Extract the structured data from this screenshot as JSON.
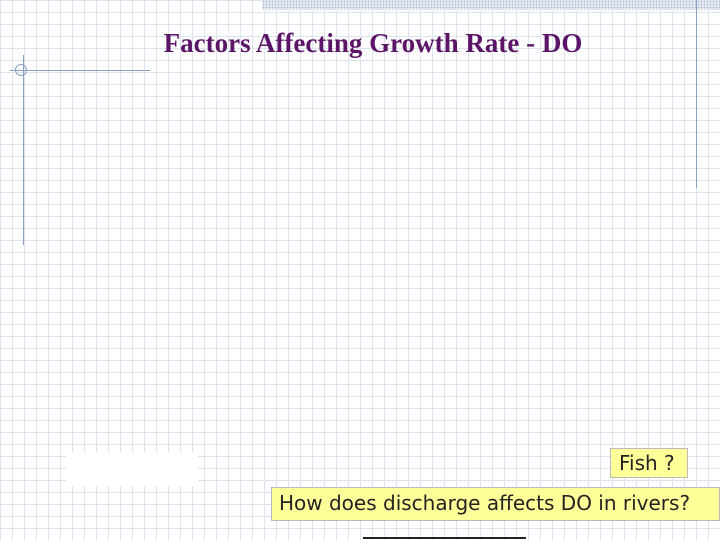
{
  "slide": {
    "title": "Factors Affecting Growth Rate - DO",
    "labels": {
      "fish": "Fish ?",
      "question": "How does discharge affects DO in rivers?"
    },
    "colors": {
      "title": "#5c1566",
      "label_background": "#ffff99",
      "grid_line": "#dde4ee",
      "accent_line": "#8aa0c4"
    }
  }
}
